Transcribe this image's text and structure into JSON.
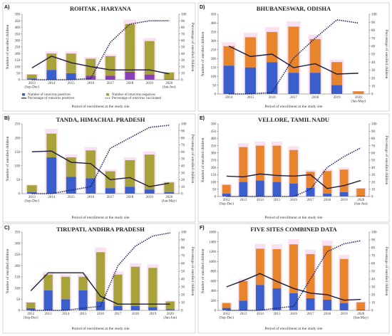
{
  "figure": {
    "legend": {
      "positives": "Number of rotavirus positives",
      "negatives": "Number of rotavirus negatives",
      "pct_positive": "Percentage of rotavirus positives",
      "pct_vaccinated": "Percentage of rotavirus vaccinated"
    },
    "colors": {
      "positives": "#3a5fcd",
      "negatives": "#e8842c",
      "olive": "#a7a33a",
      "purple": "#8a3fb8",
      "pct_line": "#1c1c3c",
      "vax_line": "#14195e",
      "ghost": "#f6c6ea"
    }
  },
  "chart_data": [
    {
      "letter": "A)",
      "type": "bar",
      "title": "ROHTAK , HARYANA",
      "xlabel": "Period of enrollment at the study site",
      "ylabel": "Number of enrolled children",
      "y2label": "Percentage of enrolled children",
      "ylim": [
        0,
        500
      ],
      "yticks": [
        0,
        50,
        100,
        150,
        200,
        250,
        300,
        350,
        400,
        450,
        500
      ],
      "y2lim": [
        0,
        100
      ],
      "y2ticks": [
        0,
        10,
        20,
        30,
        40,
        50,
        60,
        70,
        80,
        90,
        100
      ],
      "categories": [
        "2013 (Sep-Dec)",
        "2014",
        "2015",
        "2016",
        "2017",
        "2018",
        "2019",
        "2020 (Jan-Jun)"
      ],
      "positives": [
        10,
        75,
        50,
        30,
        30,
        60,
        40,
        5
      ],
      "negatives": [
        30,
        125,
        150,
        130,
        150,
        365,
        255,
        50
      ],
      "neg_color": "olive",
      "pos_top_color": "purple",
      "pct_positive": [
        18,
        36,
        26,
        20,
        15,
        15,
        15,
        9
      ],
      "pct_vaccinated": [
        0,
        0,
        0,
        2,
        57,
        85,
        90,
        90
      ],
      "legend_inside": true
    },
    {
      "letter": "D)",
      "type": "bar",
      "title": "BHUBANESWAR, ODISHA",
      "xlabel": "Period of enrollment at the study site",
      "ylabel": "Number of enrolled children",
      "y2label": "Percentage of enrolled children",
      "ylim": [
        0,
        450
      ],
      "yticks": [
        0,
        50,
        100,
        150,
        200,
        250,
        300,
        350,
        400,
        450
      ],
      "y2lim": [
        0,
        100
      ],
      "y2ticks": [
        0,
        10,
        20,
        30,
        40,
        50,
        60,
        70,
        80,
        90,
        100
      ],
      "categories": [
        "2014",
        "2015",
        "2016",
        "2017",
        "2018",
        "2019",
        "2020 (Jan-May)"
      ],
      "positives": [
        160,
        150,
        180,
        120,
        120,
        50,
        0
      ],
      "negatives": [
        110,
        170,
        170,
        260,
        190,
        130,
        15
      ],
      "neg_color": "negatives",
      "pct_positive": [
        60,
        47,
        50,
        33,
        38,
        25,
        26
      ],
      "pct_vaccinated": [
        0,
        0,
        2,
        45,
        70,
        93,
        89
      ]
    },
    {
      "letter": "B)",
      "type": "bar",
      "title": "TANDA, HIMACHAL PRADESH",
      "xlabel": "Period of enrollment at the study site",
      "ylabel": "Number of enrolled children",
      "y2label": "Percentage of enrolled children",
      "ylim": [
        0,
        250
      ],
      "yticks": [
        0,
        50,
        100,
        150,
        200,
        250
      ],
      "y2lim": [
        0,
        100
      ],
      "y2ticks": [
        0,
        10,
        20,
        30,
        40,
        50,
        60,
        70,
        80,
        90,
        100
      ],
      "categories": [
        "2013 (Sep-Dec)",
        "2014",
        "2015",
        "2016",
        "2017",
        "2018",
        "2019",
        "2020 (Jan-May)"
      ],
      "positives": [
        5,
        130,
        60,
        55,
        20,
        25,
        15,
        5
      ],
      "negatives": [
        25,
        85,
        70,
        100,
        60,
        95,
        125,
        35
      ],
      "neg_color": "olive",
      "pct_positive": [
        60,
        61,
        45,
        43,
        20,
        23,
        10,
        15
      ],
      "pct_vaccinated": [
        0,
        0,
        5,
        10,
        65,
        80,
        95,
        98
      ]
    },
    {
      "letter": "E)",
      "type": "bar",
      "title": "VELLORE, TAMIL NADU",
      "xlabel": "Period of enrollment at the study site",
      "ylabel": "Number of enrolled children",
      "y2label": "Percentage of enrolled children",
      "ylim": [
        0,
        500
      ],
      "yticks": [
        0,
        50,
        100,
        150,
        200,
        250,
        300,
        350,
        400,
        450,
        500
      ],
      "y2lim": [
        0,
        100
      ],
      "y2ticks": [
        0,
        10,
        20,
        30,
        40,
        50,
        60,
        70,
        80,
        90,
        100
      ],
      "categories": [
        "2012 (Sep-Dec)",
        "2013",
        "2014",
        "2015",
        "2016",
        "2017",
        "2018",
        "2019",
        "2020 (Jan-Jun)"
      ],
      "positives": [
        20,
        100,
        110,
        100,
        90,
        60,
        20,
        30,
        5
      ],
      "negatives": [
        60,
        240,
        240,
        250,
        230,
        110,
        155,
        155,
        50
      ],
      "neg_color": "negatives",
      "pct_positive": [
        28,
        27,
        31,
        29,
        28,
        30,
        11,
        15,
        22
      ],
      "pct_vaccinated": [
        0,
        0,
        0,
        0,
        0,
        10,
        40,
        55,
        67
      ]
    },
    {
      "letter": "C)",
      "type": "bar",
      "title": "TIRUPATI, ANDHRA PRADESH",
      "xlabel": "Period of enrollment at the study site",
      "ylabel": "Number of enrolled children",
      "y2label": "Percentage of enrolled children",
      "ylim": [
        0,
        350
      ],
      "yticks": [
        0,
        50,
        100,
        150,
        200,
        250,
        300,
        350
      ],
      "y2lim": [
        0,
        100
      ],
      "y2ticks": [
        0,
        10,
        20,
        30,
        40,
        50,
        60,
        70,
        80,
        90,
        100
      ],
      "categories": [
        "2012 (Sep-Dec)",
        "2013",
        "2014",
        "2015",
        "2016",
        "2017",
        "2018",
        "2019",
        "2020 (Jan-Jun)"
      ],
      "positives": [
        10,
        90,
        50,
        90,
        40,
        20,
        20,
        15,
        5
      ],
      "negatives": [
        25,
        70,
        100,
        60,
        220,
        140,
        175,
        175,
        35
      ],
      "neg_color": "olive",
      "pct_positive": [
        25,
        48,
        48,
        48,
        18,
        8,
        8,
        8,
        8
      ],
      "pct_vaccinated": [
        0,
        0,
        0,
        3,
        5,
        57,
        82,
        95,
        99
      ]
    },
    {
      "letter": "F)",
      "type": "bar",
      "title": "FIVE SITES COMBINED DATA",
      "xlabel": "Period of enrollment at the study site",
      "ylabel": "Number of enrolled children",
      "y2label": "Percentage of enrolled children",
      "ylim": [
        0,
        1600
      ],
      "yticks": [
        0,
        200,
        400,
        600,
        800,
        1000,
        1200,
        1400,
        1600
      ],
      "y2lim": [
        0,
        100
      ],
      "y2ticks": [
        0,
        10,
        20,
        30,
        40,
        50,
        60,
        70,
        80,
        90,
        100
      ],
      "categories": [
        "2012 (Sep-Dec)",
        "2013",
        "2014",
        "2015",
        "2016",
        "2017",
        "2018",
        "2019",
        "2020 (Jan-May)"
      ],
      "positives": [
        50,
        200,
        520,
        450,
        350,
        250,
        220,
        150,
        15
      ],
      "negatives": [
        100,
        400,
        740,
        800,
        1000,
        900,
        1100,
        900,
        150
      ],
      "neg_color": "negatives",
      "pct_positive": [
        30,
        38,
        47,
        37,
        28,
        22,
        20,
        13,
        14
      ],
      "pct_vaccinated": [
        0,
        0,
        0,
        3,
        5,
        40,
        75,
        85,
        89
      ]
    }
  ]
}
